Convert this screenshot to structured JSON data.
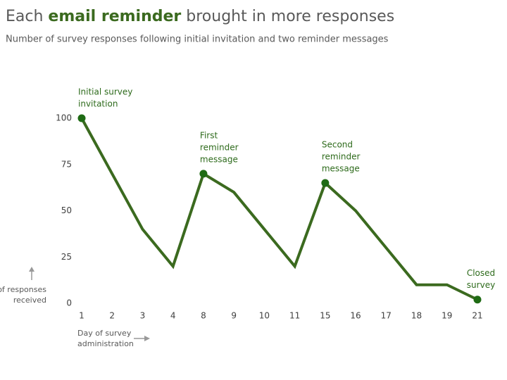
{
  "chart_data": {
    "type": "line",
    "title": [
      "Each",
      "email reminder",
      "brought in more responses"
    ],
    "subtitle": "Number of survey responses following initial invitation and two reminder messages",
    "x_label": [
      "Day of survey",
      "administration"
    ],
    "y_label": [
      "# of responses",
      "received"
    ],
    "categories": [
      "1",
      "2",
      "3",
      "4",
      "8",
      "9",
      "10",
      "11",
      "15",
      "16",
      "17",
      "18",
      "19",
      "21"
    ],
    "values": [
      100,
      70,
      40,
      20,
      70,
      60,
      40,
      20,
      65,
      50,
      30,
      10,
      10,
      2
    ],
    "annotations": [
      [
        "Initial survey",
        "invitation"
      ],
      null,
      null,
      null,
      [
        "First",
        "reminder",
        "message"
      ],
      null,
      null,
      null,
      [
        "Second",
        "reminder",
        "message"
      ],
      null,
      null,
      null,
      null,
      [
        "Closed",
        "survey"
      ]
    ],
    "color": "#3b6a1f",
    "marker_color": "#1f6b14",
    "ylim": [
      0,
      100
    ],
    "yticks": [
      0,
      25,
      50,
      75,
      100
    ],
    "grid": false
  }
}
